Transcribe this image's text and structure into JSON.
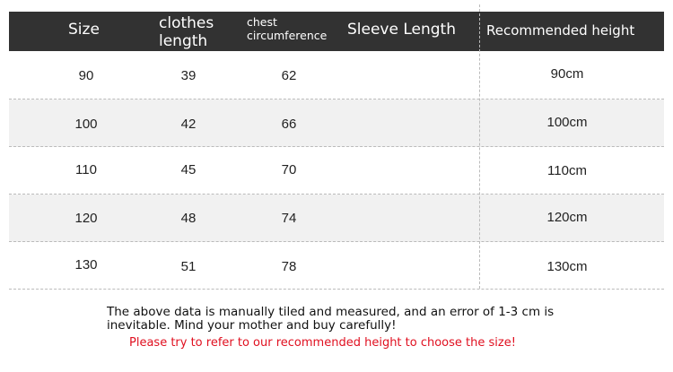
{
  "headers": {
    "size": "Size",
    "clothes_length_1": "clothes",
    "clothes_length_2": "length",
    "chest_1": "chest",
    "chest_2": "circumference",
    "sleeve": "Sleeve Length",
    "height": "Recommended height"
  },
  "rows": [
    {
      "size": "90",
      "length": "39",
      "chest": "62",
      "sleeve": "",
      "height": "90cm"
    },
    {
      "size": "100",
      "length": "42",
      "chest": "66",
      "sleeve": "",
      "height": "100cm"
    },
    {
      "size": "110",
      "length": "45",
      "chest": "70",
      "sleeve": "",
      "height": "110cm"
    },
    {
      "size": "120",
      "length": "48",
      "chest": "74",
      "sleeve": "",
      "height": "120cm"
    },
    {
      "size": "130",
      "length": "51",
      "chest": "78",
      "sleeve": "",
      "height": "130cm"
    }
  ],
  "note": "The above data is manually tiled and measured, and an error of 1-3 cm is inevitable. Mind your mother and buy carefully!",
  "warning": "Please try to refer to our recommended height to choose the size!",
  "colors": {
    "header_bg": "#323232",
    "alt_row": "#f1f1f1",
    "warning": "#e01020"
  }
}
